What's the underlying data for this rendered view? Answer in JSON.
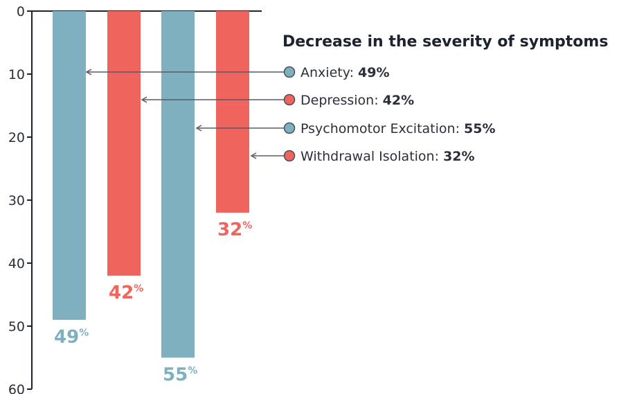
{
  "colors": {
    "teal": "#7fb0c0",
    "red": "#f0645e",
    "axis": "#1d2230",
    "connector": "#555a63"
  },
  "chart_data": {
    "type": "bar",
    "title": "Decrease in the severity of symptoms",
    "y_axis": {
      "ticks": [
        0,
        10,
        20,
        30,
        40,
        50,
        60
      ],
      "range": [
        0,
        60
      ],
      "inverted": true
    },
    "grid": false,
    "legend_position": "right",
    "series": [
      {
        "name": "Anxiety",
        "value": 49,
        "label": "49",
        "unit": "%",
        "legend_value": "49%",
        "color": "teal"
      },
      {
        "name": "Depression",
        "value": 42,
        "label": "42",
        "unit": "%",
        "legend_value": "42%",
        "color": "red"
      },
      {
        "name": "Psychomotor Excitation",
        "value": 55,
        "label": "55",
        "unit": "%",
        "legend_value": "55%",
        "color": "teal"
      },
      {
        "name": "Withdrawal Isolation",
        "value": 32,
        "label": "32",
        "unit": "%",
        "legend_value": "32%",
        "color": "red"
      }
    ]
  }
}
